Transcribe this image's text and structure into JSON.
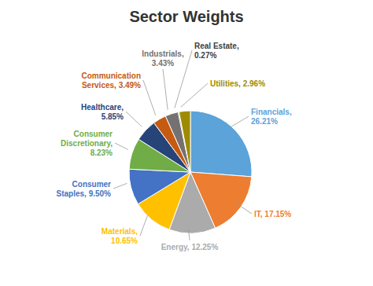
{
  "chart_data": {
    "type": "pie",
    "title": "Sector Weights",
    "values": [
      26.21,
      17.15,
      12.25,
      10.65,
      9.5,
      8.23,
      5.85,
      3.49,
      3.43,
      0.27,
      2.96
    ],
    "value_labels": [
      "Financials,\n26.21%",
      "IT, 17.15%",
      "Energy, 12.25%",
      "Materials,\n10.65%",
      "Consumer\nStaples, 9.50%",
      "Consumer\nDiscretionary,\n8.23%",
      "Healthcare,\n5.85%",
      "Communication\nServices, 3.49%",
      "Industrials,\n3.43%",
      "Real Estate,\n0.27%",
      "Utilities, 2.96%"
    ],
    "colors": [
      "#5BA3D9",
      "#ED7D31",
      "#ABABAB",
      "#FFC000",
      "#4472C4",
      "#70AD47",
      "#264478",
      "#C55A11",
      "#767171",
      "#404040",
      "#9E8B00"
    ],
    "data_labels": true
  }
}
